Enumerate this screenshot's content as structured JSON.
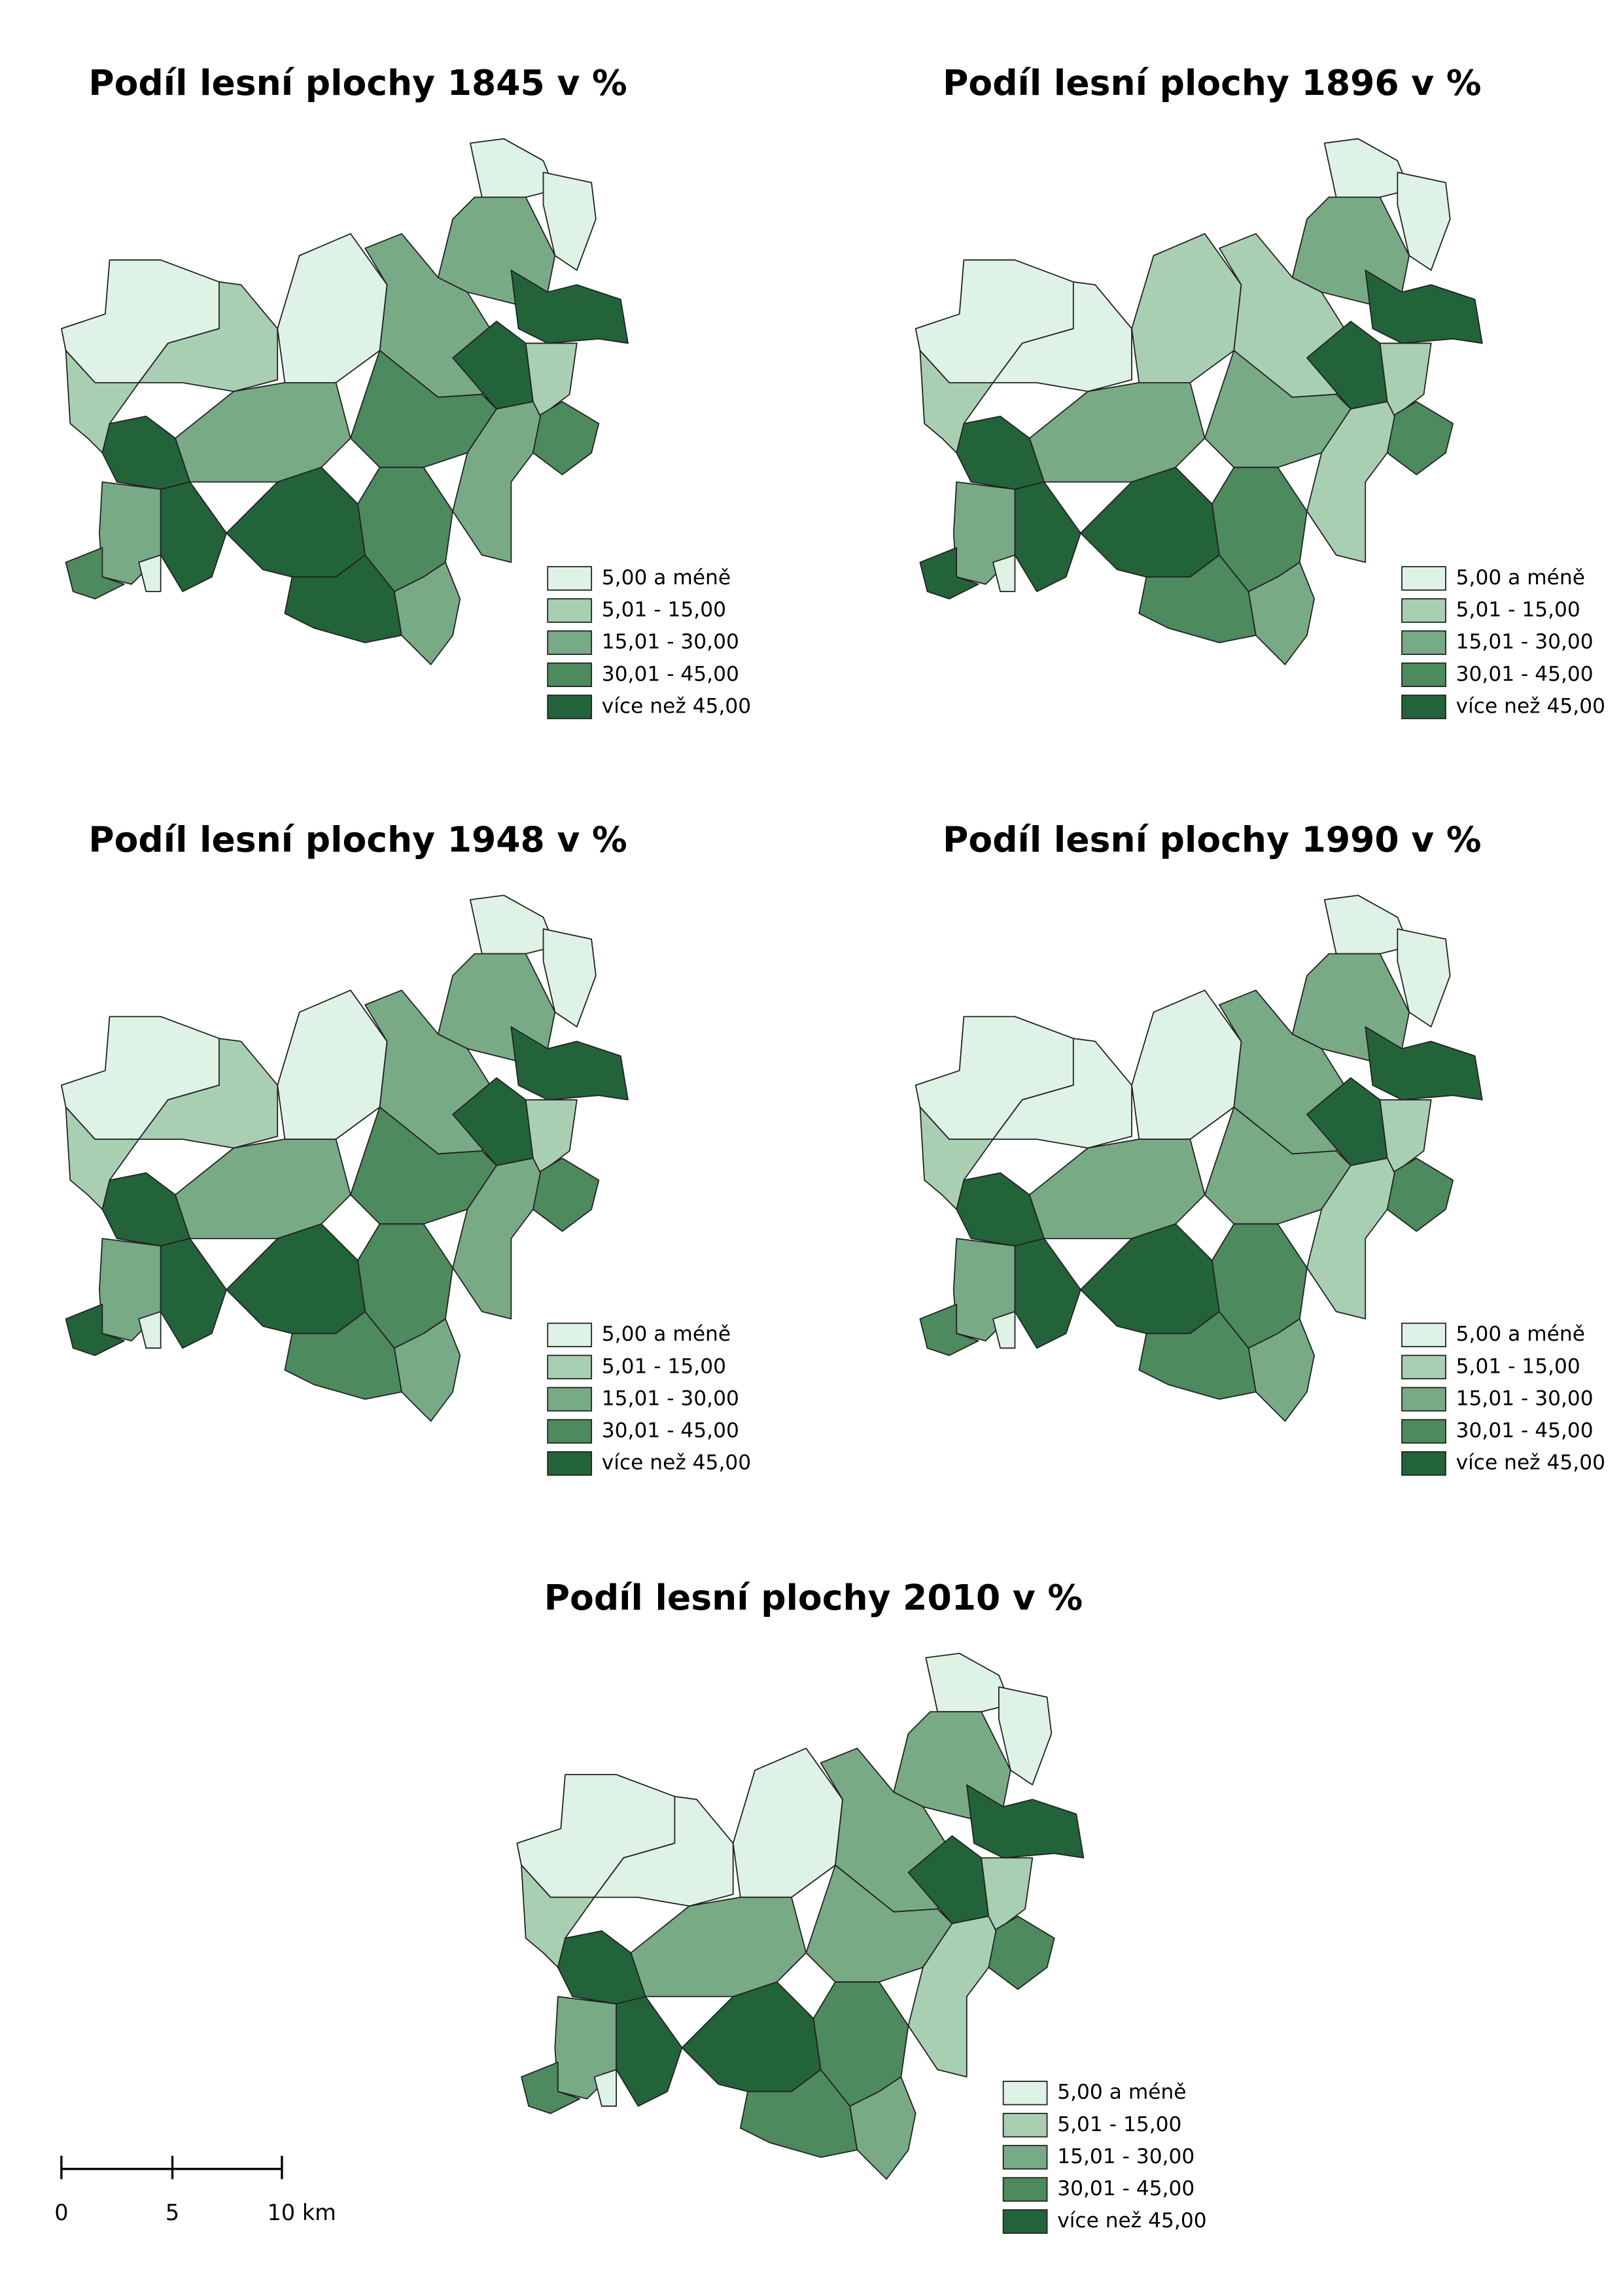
{
  "maps": [
    {
      "title": "Podíl lesní plochy 1845 v %"
    },
    {
      "title": "Podíl lesní plochy 1896 v %"
    },
    {
      "title": "Podíl lesní plochy 1948 v %"
    },
    {
      "title": "Podíl lesní plochy 1990 v %"
    },
    {
      "title": "Podíl lesní plochy 2010 v %"
    }
  ],
  "legend": {
    "items": [
      "5,00 a méně",
      "5,01 - 15,00",
      "15,01 - 30,00",
      "30,01 - 45,00",
      "více než 45,00"
    ]
  },
  "scale_bar": {
    "labels": [
      "0",
      "5",
      "10 km"
    ]
  }
}
